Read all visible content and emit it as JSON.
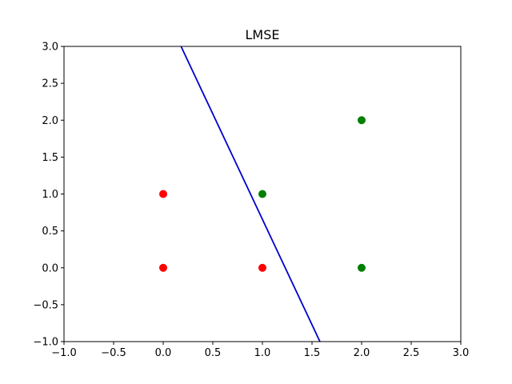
{
  "chart_data": {
    "type": "scatter",
    "title": "LMSE",
    "xlabel": "",
    "ylabel": "",
    "xlim": [
      -1.0,
      3.0
    ],
    "ylim": [
      -1.0,
      3.0
    ],
    "xticks": [
      -1.0,
      -0.5,
      0.0,
      0.5,
      1.0,
      1.5,
      2.0,
      2.5,
      3.0
    ],
    "yticks": [
      -1.0,
      -0.5,
      0.0,
      0.5,
      1.0,
      1.5,
      2.0,
      2.5,
      3.0
    ],
    "xtick_labels": [
      "−1.0",
      "−0.5",
      "0.0",
      "0.5",
      "1.0",
      "1.5",
      "2.0",
      "2.5",
      "3.0"
    ],
    "ytick_labels": [
      "−1.0",
      "−0.5",
      "0.0",
      "0.5",
      "1.0",
      "1.5",
      "2.0",
      "2.5",
      "3.0"
    ],
    "grid": false,
    "series": [
      {
        "color": "#ff0000",
        "points": [
          [
            0,
            0
          ],
          [
            0,
            1
          ],
          [
            1,
            0
          ]
        ]
      },
      {
        "color": "#008000",
        "points": [
          [
            1,
            1
          ],
          [
            2,
            0
          ],
          [
            2,
            2
          ]
        ]
      }
    ],
    "line": {
      "color": "#0000cd",
      "points": [
        [
          0.18,
          3.0
        ],
        [
          1.58,
          -1.0
        ]
      ]
    }
  }
}
